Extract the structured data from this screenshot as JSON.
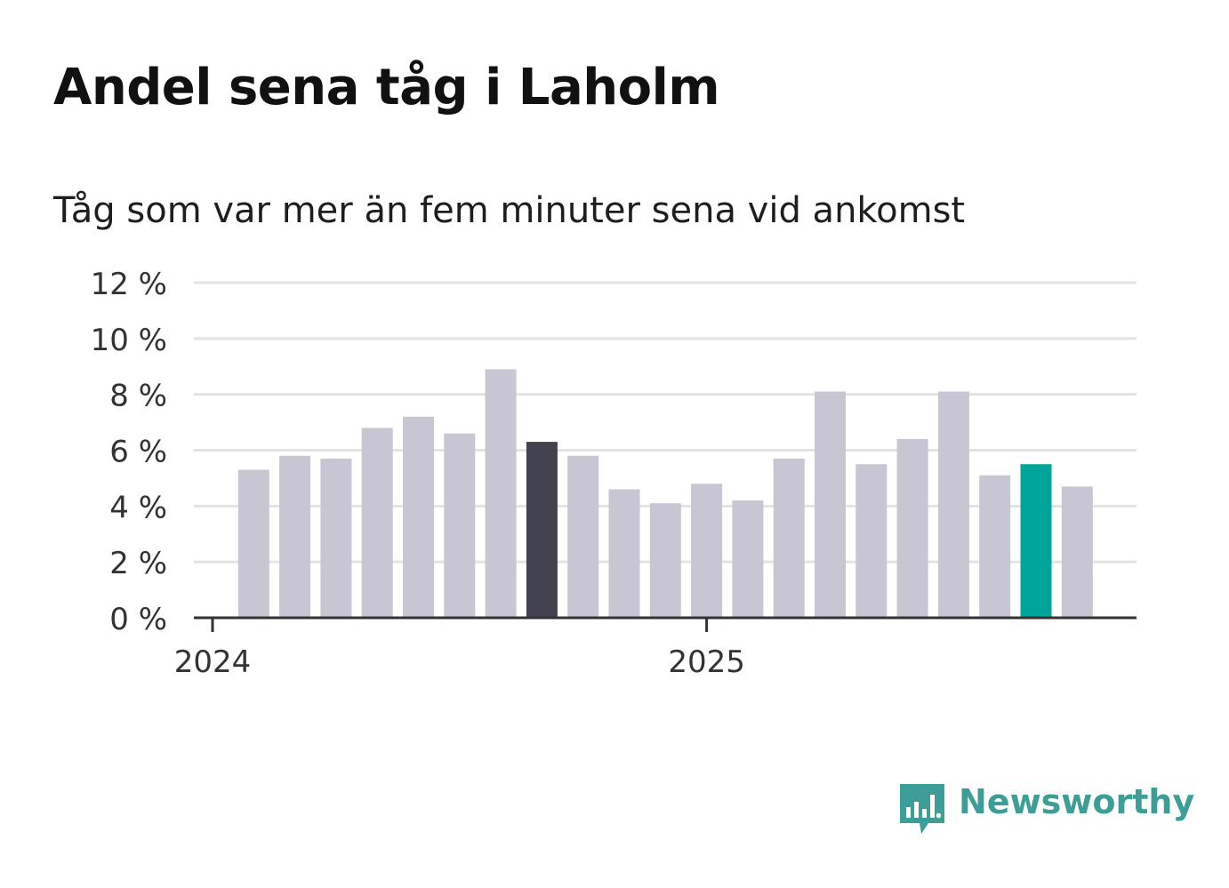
{
  "title": "Andel sena tåg i Laholm",
  "subtitle": "Tåg som var mer än fem minuter sena vid ankomst",
  "logo": {
    "text": "Newsworthy",
    "icon": "newsworthy-chart-bubble-icon",
    "color": "#3d9d97"
  },
  "colors": {
    "bar": "#c8c6d2",
    "highlight_dark": "#43424f",
    "highlight_latest": "#00a59a",
    "grid": "#e3e3e3",
    "axis": "#333333"
  },
  "chart_data": {
    "type": "bar",
    "title": "Andel sena tåg i Laholm",
    "subtitle": "Tåg som var mer än fem minuter sena vid ankomst",
    "xlabel": "",
    "ylabel": "",
    "ylim": [
      0,
      12
    ],
    "yticks": [
      0,
      2,
      4,
      6,
      8,
      10,
      12
    ],
    "ytick_labels": [
      "0 %",
      "2 %",
      "4 %",
      "6 %",
      "8 %",
      "10 %",
      "12 %"
    ],
    "xtick_labels": [
      "2024",
      "2025"
    ],
    "xtick_positions": [
      0,
      12
    ],
    "categories": [
      "2024-01",
      "2024-02",
      "2024-03",
      "2024-04",
      "2024-05",
      "2024-06",
      "2024-07",
      "2024-08",
      "2024-09",
      "2024-10",
      "2024-11",
      "2024-12",
      "2025-01",
      "2025-02",
      "2025-03",
      "2025-04",
      "2025-05",
      "2025-06",
      "2025-07",
      "2025-08",
      "2025-09",
      "2025-10",
      "2025-11",
      "2025-12"
    ],
    "values": [
      null,
      5.3,
      5.8,
      5.7,
      6.8,
      7.2,
      6.6,
      8.9,
      6.3,
      5.8,
      4.6,
      4.1,
      4.8,
      4.2,
      5.7,
      8.1,
      5.5,
      6.4,
      8.1,
      5.1,
      5.5,
      4.7,
      null,
      null
    ],
    "highlights": {
      "8": "highlight_dark",
      "20": "highlight_latest"
    },
    "grid": true
  }
}
